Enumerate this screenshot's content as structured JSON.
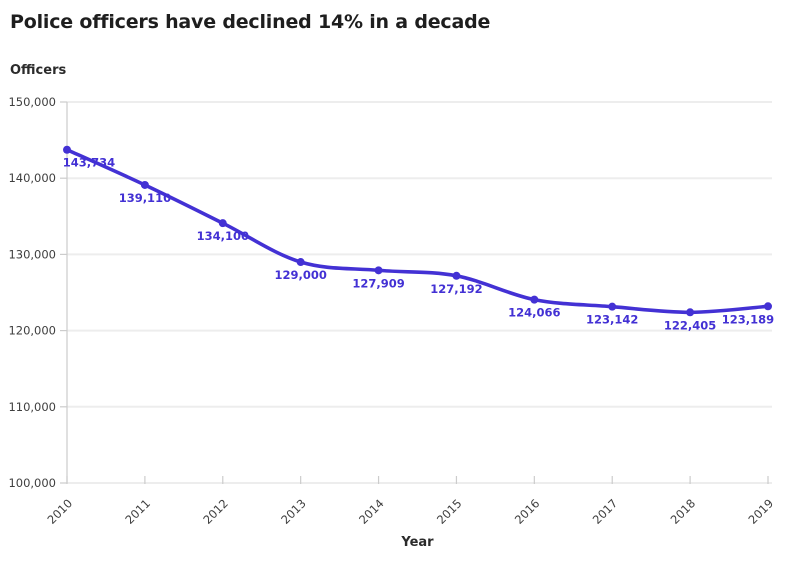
{
  "chart_data": {
    "type": "line",
    "title": "Police officers have declined 14% in a decade",
    "ylabel": "Officers",
    "xlabel": "Year",
    "categories": [
      "2010",
      "2011",
      "2012",
      "2013",
      "2014",
      "2015",
      "2016",
      "2017",
      "2018",
      "2019"
    ],
    "series": [
      {
        "name": "Officers",
        "values": [
          143734,
          139110,
          134100,
          129000,
          127909,
          127192,
          124066,
          123142,
          122405,
          123189
        ]
      }
    ],
    "data_labels": [
      "143,734",
      "139,110",
      "134,100",
      "129,000",
      "127,909",
      "127,192",
      "124,066",
      "123,142",
      "122,405",
      "123,189"
    ],
    "ylim": [
      100000,
      150000
    ],
    "yticks": [
      100000,
      110000,
      120000,
      130000,
      140000,
      150000
    ],
    "ytick_labels": [
      "100,000",
      "110,000",
      "120,000",
      "130,000",
      "140,000",
      "150,000"
    ],
    "grid": "horizontal",
    "legend": "none",
    "colors": {
      "line": "#4331d4",
      "point": "#4331d4",
      "data_label": "#4331d4",
      "title": "#1e1e1e",
      "axis_text": "#3f3f3f",
      "grid": "#ededed",
      "axis_line": "#cccccc"
    }
  }
}
